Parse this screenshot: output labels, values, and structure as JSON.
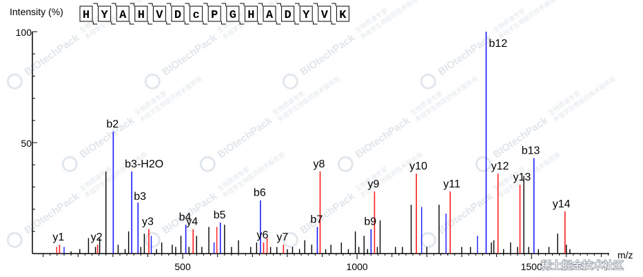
{
  "chart_data": {
    "type": "bar",
    "subtype": "mass-spectrum",
    "ylabel": "Intensity (%)",
    "xlabel": "m/z",
    "xlim": [
      0,
      1750
    ],
    "ylim": [
      0,
      100
    ],
    "x_ticks": [
      500,
      1000,
      1500
    ],
    "y_ticks": [
      50,
      100
    ],
    "sequence": [
      "H",
      "Y",
      "A",
      "H",
      "V",
      "D",
      "c",
      "P",
      "G",
      "H",
      "A",
      "D",
      "Y",
      "V",
      "K"
    ],
    "colors": {
      "b_ion": "#1a1aff",
      "y_ion": "#ff1a1a",
      "unassigned": "#000000"
    },
    "annotated_peaks": [
      {
        "label": "y1",
        "series": "y",
        "mz": 147,
        "intensity": 4
      },
      {
        "label": "y2",
        "series": "y",
        "mz": 256,
        "intensity": 4
      },
      {
        "label": "b2",
        "series": "b",
        "mz": 301,
        "intensity": 55
      },
      {
        "label": "b3-H2O",
        "series": "b",
        "mz": 354,
        "intensity": 37
      },
      {
        "label": "b3",
        "series": "b",
        "mz": 372,
        "intensity": 23
      },
      {
        "label": "y3",
        "series": "y",
        "mz": 403,
        "intensity": 11
      },
      {
        "label": "b4",
        "series": "b",
        "mz": 509,
        "intensity": 13
      },
      {
        "label": "y4",
        "series": "y",
        "mz": 530,
        "intensity": 11
      },
      {
        "label": "b5",
        "series": "b",
        "mz": 608,
        "intensity": 14
      },
      {
        "label": "b6",
        "series": "b",
        "mz": 723,
        "intensity": 24
      },
      {
        "label": "y6",
        "series": "y",
        "mz": 732,
        "intensity": 5
      },
      {
        "label": "y7",
        "series": "y",
        "mz": 789,
        "intensity": 4
      },
      {
        "label": "b7",
        "series": "b",
        "mz": 886,
        "intensity": 12
      },
      {
        "label": "y8",
        "series": "y",
        "mz": 894,
        "intensity": 37
      },
      {
        "label": "b9",
        "series": "b",
        "mz": 1040,
        "intensity": 11
      },
      {
        "label": "y9",
        "series": "y",
        "mz": 1050,
        "intensity": 28
      },
      {
        "label": "y10",
        "series": "y",
        "mz": 1170,
        "intensity": 36
      },
      {
        "label": "y11",
        "series": "y",
        "mz": 1267,
        "intensity": 28
      },
      {
        "label": "b12",
        "series": "b",
        "mz": 1370,
        "intensity": 100
      },
      {
        "label": "y12",
        "series": "y",
        "mz": 1404,
        "intensity": 36
      },
      {
        "label": "y13",
        "series": "y",
        "mz": 1467,
        "intensity": 31
      },
      {
        "label": "b13",
        "series": "b",
        "mz": 1507,
        "intensity": 43
      },
      {
        "label": "y14",
        "series": "y",
        "mz": 1596,
        "intensity": 19
      }
    ],
    "unlabeled_peaks": [
      {
        "series": "y",
        "mz": 139,
        "intensity": 3
      },
      {
        "series": "b",
        "mz": 160,
        "intensity": 3
      },
      {
        "series": "u",
        "mz": 180,
        "intensity": 1
      },
      {
        "series": "u",
        "mz": 205,
        "intensity": 2
      },
      {
        "series": "u",
        "mz": 230,
        "intensity": 7
      },
      {
        "series": "u",
        "mz": 250,
        "intensity": 3
      },
      {
        "series": "u",
        "mz": 262,
        "intensity": 7
      },
      {
        "series": "u",
        "mz": 280,
        "intensity": 37
      },
      {
        "series": "u",
        "mz": 315,
        "intensity": 4
      },
      {
        "series": "u",
        "mz": 335,
        "intensity": 2
      },
      {
        "series": "u",
        "mz": 345,
        "intensity": 10
      },
      {
        "series": "u",
        "mz": 380,
        "intensity": 3
      },
      {
        "series": "u",
        "mz": 390,
        "intensity": 9
      },
      {
        "series": "b",
        "mz": 410,
        "intensity": 8
      },
      {
        "series": "u",
        "mz": 425,
        "intensity": 2
      },
      {
        "series": "u",
        "mz": 440,
        "intensity": 5
      },
      {
        "series": "u",
        "mz": 470,
        "intensity": 4
      },
      {
        "series": "u",
        "mz": 480,
        "intensity": 3
      },
      {
        "series": "u",
        "mz": 495,
        "intensity": 8
      },
      {
        "series": "u",
        "mz": 518,
        "intensity": 3
      },
      {
        "series": "u",
        "mz": 540,
        "intensity": 8
      },
      {
        "series": "u",
        "mz": 555,
        "intensity": 3
      },
      {
        "series": "u",
        "mz": 575,
        "intensity": 12
      },
      {
        "series": "b",
        "mz": 590,
        "intensity": 5
      },
      {
        "series": "y",
        "mz": 598,
        "intensity": 12
      },
      {
        "series": "u",
        "mz": 620,
        "intensity": 13
      },
      {
        "series": "u",
        "mz": 640,
        "intensity": 3
      },
      {
        "series": "u",
        "mz": 660,
        "intensity": 6
      },
      {
        "series": "u",
        "mz": 695,
        "intensity": 3
      },
      {
        "series": "u",
        "mz": 712,
        "intensity": 5
      },
      {
        "series": "y",
        "mz": 742,
        "intensity": 7
      },
      {
        "series": "u",
        "mz": 752,
        "intensity": 3
      },
      {
        "series": "u",
        "mz": 770,
        "intensity": 3
      },
      {
        "series": "u",
        "mz": 800,
        "intensity": 2
      },
      {
        "series": "u",
        "mz": 815,
        "intensity": 3
      },
      {
        "series": "u",
        "mz": 835,
        "intensity": 2
      },
      {
        "series": "u",
        "mz": 850,
        "intensity": 6
      },
      {
        "series": "u",
        "mz": 870,
        "intensity": 4
      },
      {
        "series": "u",
        "mz": 910,
        "intensity": 2
      },
      {
        "series": "u",
        "mz": 925,
        "intensity": 4
      },
      {
        "series": "u",
        "mz": 955,
        "intensity": 5
      },
      {
        "series": "u",
        "mz": 975,
        "intensity": 2
      },
      {
        "series": "u",
        "mz": 995,
        "intensity": 10
      },
      {
        "series": "u",
        "mz": 1005,
        "intensity": 3
      },
      {
        "series": "u",
        "mz": 1020,
        "intensity": 8
      },
      {
        "series": "u",
        "mz": 1030,
        "intensity": 2
      },
      {
        "series": "u",
        "mz": 1058,
        "intensity": 3
      },
      {
        "series": "u",
        "mz": 1066,
        "intensity": 15
      },
      {
        "series": "u",
        "mz": 1110,
        "intensity": 3
      },
      {
        "series": "u",
        "mz": 1130,
        "intensity": 3
      },
      {
        "series": "u",
        "mz": 1155,
        "intensity": 22
      },
      {
        "series": "b",
        "mz": 1185,
        "intensity": 21
      },
      {
        "series": "u",
        "mz": 1200,
        "intensity": 3
      },
      {
        "series": "u",
        "mz": 1235,
        "intensity": 22
      },
      {
        "series": "b",
        "mz": 1255,
        "intensity": 18
      },
      {
        "series": "u",
        "mz": 1300,
        "intensity": 3
      },
      {
        "series": "u",
        "mz": 1325,
        "intensity": 3
      },
      {
        "series": "b",
        "mz": 1345,
        "intensity": 8
      },
      {
        "series": "u",
        "mz": 1385,
        "intensity": 5
      },
      {
        "series": "u",
        "mz": 1392,
        "intensity": 6
      },
      {
        "series": "u",
        "mz": 1420,
        "intensity": 2
      },
      {
        "series": "u",
        "mz": 1440,
        "intensity": 5
      },
      {
        "series": "u",
        "mz": 1460,
        "intensity": 3
      },
      {
        "series": "u",
        "mz": 1478,
        "intensity": 35
      },
      {
        "series": "u",
        "mz": 1492,
        "intensity": 3
      },
      {
        "series": "u",
        "mz": 1520,
        "intensity": 2
      },
      {
        "series": "u",
        "mz": 1550,
        "intensity": 3
      },
      {
        "series": "u",
        "mz": 1575,
        "intensity": 9
      },
      {
        "series": "u",
        "mz": 1600,
        "intensity": 4
      },
      {
        "series": "u",
        "mz": 1610,
        "intensity": 2
      }
    ]
  },
  "watermark": {
    "brand": "BIOtechPack",
    "sub_line_1": "生物质谱专家",
    "sub_line_2": "多组学生物医药技术服务商"
  },
  "corner_mark": "稀土掘金技术社区"
}
